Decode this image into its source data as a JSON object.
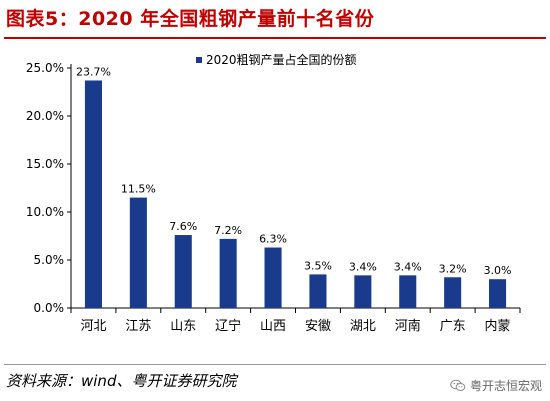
{
  "header": {
    "title": "图表5：2020 年全国粗钢产量前十名省份"
  },
  "chart_data": {
    "type": "bar",
    "categories": [
      "河北",
      "江苏",
      "山东",
      "辽宁",
      "山西",
      "安徽",
      "湖北",
      "河南",
      "广东",
      "内蒙"
    ],
    "series": [
      {
        "name": "2020粗钢产量占全国的份额",
        "values": [
          23.7,
          11.5,
          7.6,
          7.2,
          6.3,
          3.5,
          3.4,
          3.4,
          3.2,
          3.0
        ],
        "labels": [
          "23.7%",
          "11.5%",
          "7.6%",
          "7.2%",
          "6.3%",
          "3.5%",
          "3.4%",
          "3.4%",
          "3.2%",
          "3.0%"
        ]
      }
    ],
    "yticks": [
      0,
      5,
      10,
      15,
      20,
      25
    ],
    "ytick_labels": [
      "0.0%",
      "5.0%",
      "10.0%",
      "15.0%",
      "20.0%",
      "25.0%"
    ],
    "ylim": [
      0,
      25
    ],
    "grid": false,
    "legend_position": "top-center",
    "colors": {
      "bar": "#1a3a8c",
      "axis": "#000000"
    }
  },
  "footer": {
    "source": "资料来源：wind、粤开证券研究院",
    "watermark": "粤开志恒宏观",
    "watermark_icon": "wechat-icon"
  }
}
